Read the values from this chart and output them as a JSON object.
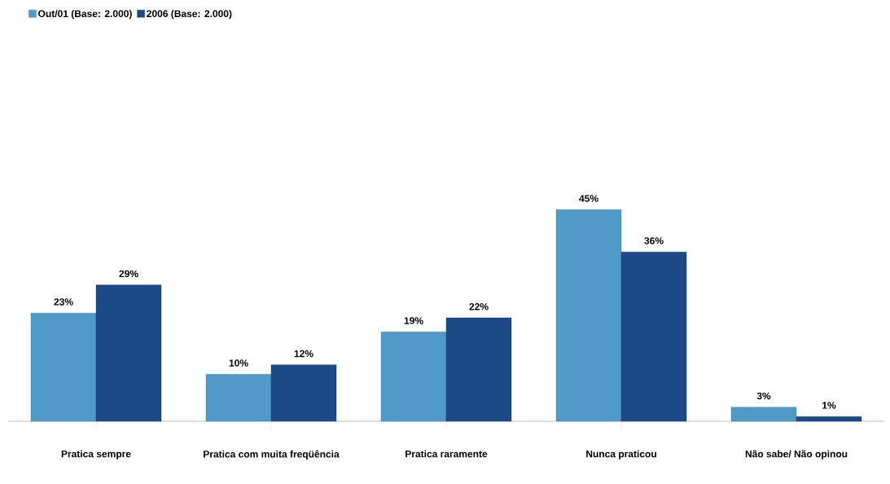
{
  "chart_data": {
    "type": "bar",
    "categories": [
      "Pratica sempre",
      "Pratica com muita freqüência",
      "Pratica raramente",
      "Nunca praticou",
      "Não sabe/ Não opinou"
    ],
    "series": [
      {
        "name": "Out/01 (Base: 2.000)",
        "color": "#4f9ac6",
        "values": [
          23,
          10,
          19,
          45,
          3
        ],
        "value_labels": [
          "23%",
          "10%",
          "19%",
          "45%",
          "3%"
        ]
      },
      {
        "name": "2006 (Base: 2.000)",
        "color": "#1c4a86",
        "values": [
          29,
          12,
          22,
          36,
          1
        ],
        "value_labels": [
          "29%",
          "12%",
          "22%",
          "36%",
          "1%"
        ]
      }
    ],
    "legend": "top left"
  }
}
